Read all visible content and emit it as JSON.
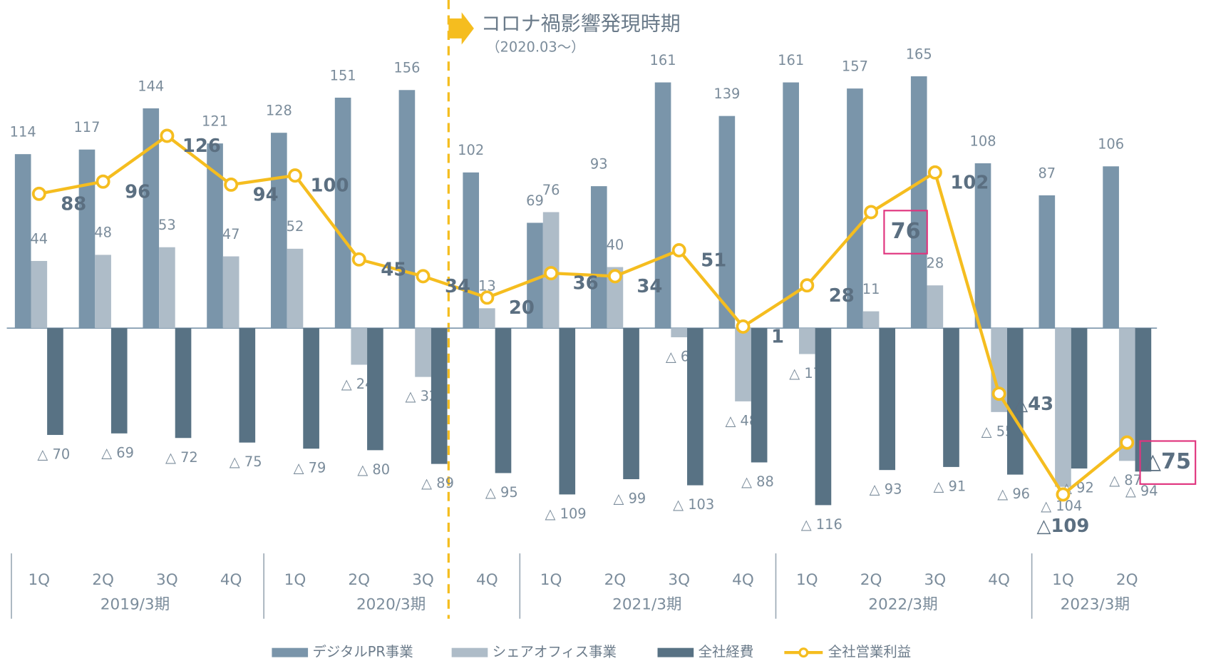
{
  "chart_data": {
    "type": "bar_line",
    "annotation": "コロナ禍影響発現時期",
    "annotation_sub": "（2020.03～）",
    "groups": [
      {
        "name": "2019/3期",
        "categories": [
          "1Q",
          "2Q",
          "3Q",
          "4Q"
        ]
      },
      {
        "name": "2020/3期",
        "categories": [
          "1Q",
          "2Q",
          "3Q",
          "4Q"
        ]
      },
      {
        "name": "2021/3期",
        "categories": [
          "1Q",
          "2Q",
          "3Q",
          "4Q"
        ]
      },
      {
        "name": "2022/3期",
        "categories": [
          "1Q",
          "2Q",
          "3Q",
          "4Q"
        ]
      },
      {
        "name": "2023/3期",
        "categories": [
          "1Q",
          "2Q"
        ]
      }
    ],
    "ylim": [
      -130,
      215
    ],
    "series": [
      {
        "name": "デジタルPR事業",
        "color": "#7a95aa",
        "kind": "bar",
        "values": [
          114,
          117,
          144,
          121,
          128,
          151,
          156,
          102,
          69,
          93,
          161,
          139,
          161,
          157,
          165,
          108,
          87,
          106
        ],
        "value_labels": [
          "114",
          "117",
          "144",
          "121",
          "128",
          "151",
          "156",
          "102",
          "69",
          "93",
          "161",
          "139",
          "161",
          "157",
          "165",
          "108",
          "87",
          "106"
        ]
      },
      {
        "name": "シェアオフィス事業",
        "color": "#aebcc8",
        "kind": "bar",
        "values": [
          44,
          48,
          53,
          47,
          52,
          -24,
          -32,
          13,
          76,
          40,
          -6,
          -48,
          -17,
          11,
          28,
          -55,
          -104,
          -87
        ],
        "value_labels": [
          "44",
          "48",
          "53",
          "47",
          "52",
          "△ 24",
          "△ 32",
          "13",
          "76",
          "40",
          "△ 6",
          "△ 48",
          "△ 17",
          "11",
          "28",
          "△ 55",
          "△ 104",
          "△ 87"
        ]
      },
      {
        "name": "全社経費",
        "color": "#587284",
        "kind": "bar",
        "values": [
          -70,
          -69,
          -72,
          -75,
          -79,
          -80,
          -89,
          -95,
          -109,
          -99,
          -103,
          -88,
          -116,
          -93,
          -91,
          -96,
          -92,
          -94
        ],
        "value_labels": [
          "△ 70",
          "△ 69",
          "△ 72",
          "△ 75",
          "△ 79",
          "△ 80",
          "△ 89",
          "△ 95",
          "△ 109",
          "△ 99",
          "△ 103",
          "△ 88",
          "△ 116",
          "△ 93",
          "△ 91",
          "△ 96",
          "△ 92",
          "△ 94"
        ]
      },
      {
        "name": "全社営業利益",
        "color": "#f5bd1f",
        "kind": "line",
        "values": [
          88,
          96,
          126,
          94,
          100,
          45,
          34,
          20,
          36,
          34,
          51,
          1,
          28,
          76,
          102,
          -43,
          -109,
          -75
        ],
        "value_labels": [
          "88",
          "96",
          "126",
          "94",
          "100",
          "45",
          "34",
          "20",
          "36",
          "34",
          "51",
          "1",
          "28",
          "76",
          "102",
          "△43",
          "△109",
          "△75"
        ],
        "highlight": [
          13,
          17
        ]
      }
    ]
  }
}
